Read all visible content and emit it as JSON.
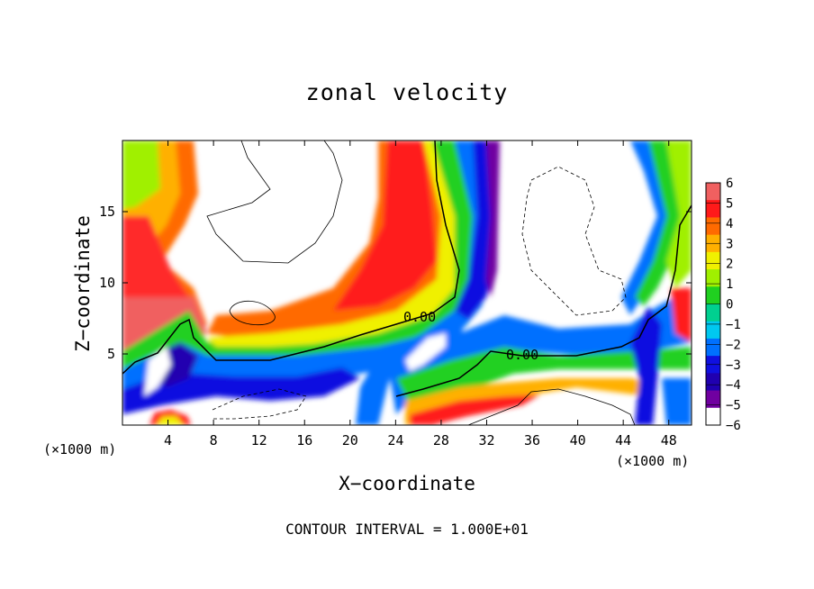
{
  "chart_data": {
    "type": "heatmap",
    "title": "zonal velocity",
    "xlabel": "X−coordinate",
    "ylabel": "Z−coordinate",
    "x_multiplier_label": "(×1000 m)",
    "footer": "CONTOUR INTERVAL = 1.000E+01",
    "xlim": [
      0,
      50
    ],
    "ylim": [
      0,
      20
    ],
    "x_ticks": [
      4,
      8,
      12,
      16,
      20,
      24,
      28,
      32,
      36,
      40,
      44,
      48
    ],
    "x_tick_labels": [
      "4",
      "8",
      "12",
      "16",
      "20",
      "24",
      "28",
      "32",
      "36",
      "40",
      "44",
      "48"
    ],
    "y_ticks": [
      5,
      10,
      15
    ],
    "y_tick_labels": [
      "5",
      "10",
      "15"
    ],
    "contour_labels": [
      "0.00",
      "0.00"
    ],
    "colorbar": {
      "min": -6,
      "max": 6,
      "labels": [
        "6",
        "5",
        "4",
        "3",
        "2",
        "1",
        "0",
        "−1",
        "−2",
        "−3",
        "−4",
        "−5",
        "−6"
      ],
      "colors": [
        "#f06060",
        "#ff1a1a",
        "#ff6a00",
        "#ffb000",
        "#f0f000",
        "#a0f000",
        "#20d020",
        "#00d090",
        "#00c8f0",
        "#0070ff",
        "#1010e0",
        "#2000b0",
        "#7000a0",
        "#ffffff"
      ]
    }
  }
}
